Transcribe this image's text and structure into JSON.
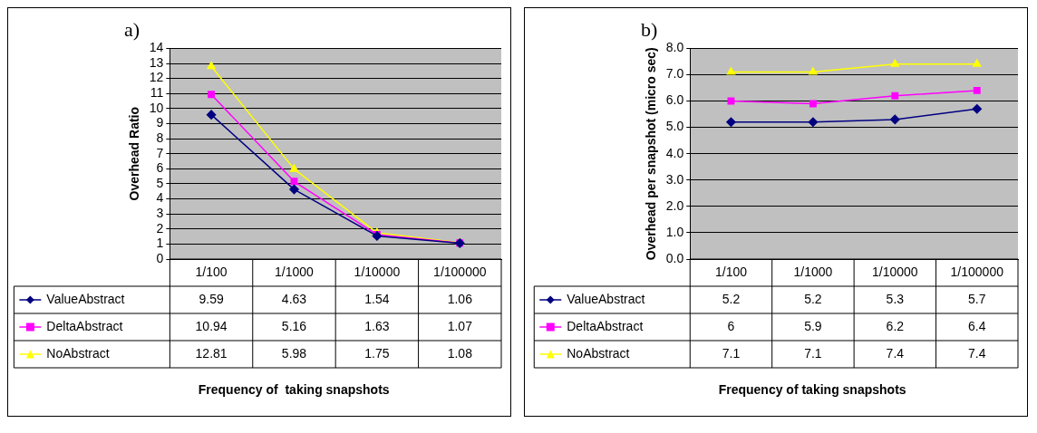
{
  "chart_data": [
    {
      "type": "line",
      "title": "a)",
      "ylabel": "Overhead Ratio",
      "xlabel": "Frequency of  taking snapshots",
      "categories": [
        "1/100",
        "1/1000",
        "1/10000",
        "1/100000"
      ],
      "series": [
        {
          "name": "ValueAbstract",
          "color": "#000080",
          "marker": "diamond",
          "values": [
            9.59,
            4.63,
            1.54,
            1.06
          ]
        },
        {
          "name": "DeltaAbstract",
          "color": "#ff00ff",
          "marker": "square",
          "values": [
            10.94,
            5.16,
            1.63,
            1.07
          ]
        },
        {
          "name": "NoAbstract",
          "color": "#ffff00",
          "marker": "triangle",
          "values": [
            12.81,
            5.98,
            1.75,
            1.08
          ]
        }
      ],
      "ylim": [
        0,
        14
      ],
      "yticks": [
        0,
        1,
        2,
        3,
        4,
        5,
        6,
        7,
        8,
        9,
        10,
        11,
        12,
        13,
        14
      ],
      "grid": "y",
      "legend": "bottom",
      "data_labels": true
    },
    {
      "type": "line",
      "title": "b)",
      "ylabel": "Overhead per snapshot (micro sec)",
      "xlabel": "Frequency of taking snapshots",
      "categories": [
        "1/100",
        "1/1000",
        "1/10000",
        "1/100000"
      ],
      "series": [
        {
          "name": "ValueAbstract",
          "color": "#000080",
          "marker": "diamond",
          "values": [
            5.2,
            5.2,
            5.3,
            5.7
          ]
        },
        {
          "name": "DeltaAbstract",
          "color": "#ff00ff",
          "marker": "square",
          "values": [
            6,
            5.9,
            6.2,
            6.4
          ]
        },
        {
          "name": "NoAbstract",
          "color": "#ffff00",
          "marker": "triangle",
          "values": [
            7.1,
            7.1,
            7.4,
            7.4
          ]
        }
      ],
      "ylim": [
        0,
        8
      ],
      "yticks": [
        {
          "value": 0,
          "label": "0.0"
        },
        {
          "value": 1,
          "label": "1.0"
        },
        {
          "value": 2,
          "label": "2.0"
        },
        {
          "value": 3,
          "label": "3.0"
        },
        {
          "value": 4,
          "label": "4.0"
        },
        {
          "value": 5,
          "label": "5.0"
        },
        {
          "value": 6,
          "label": "6.0"
        },
        {
          "value": 7,
          "label": "7.0"
        },
        {
          "value": 8,
          "label": "8.0"
        }
      ],
      "grid": "y",
      "legend": "bottom",
      "data_labels": true
    }
  ]
}
